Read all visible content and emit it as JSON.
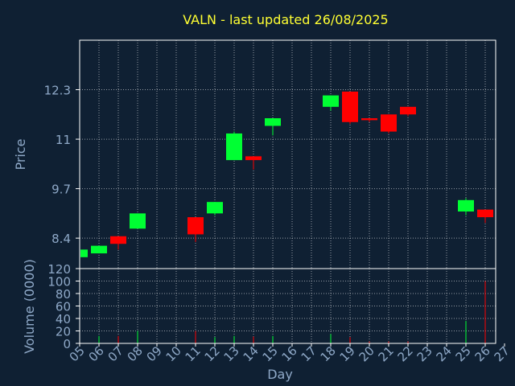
{
  "chart_data": {
    "type": "candlestick",
    "title": "VALN - last updated 26/08/2025",
    "xlabel": "Day",
    "price_panel": {
      "ylabel": "Price",
      "y_ticks": [
        "8.4",
        "9.7",
        "11",
        "12.3"
      ],
      "ylim": [
        7.6,
        13.6
      ]
    },
    "volume_panel": {
      "ylabel": "Volume (0000)",
      "y_ticks": [
        "0",
        "20",
        "40",
        "60",
        "80",
        "100",
        "120"
      ],
      "ylim": [
        0,
        120
      ]
    },
    "x_ticks": [
      "05",
      "06",
      "07",
      "08",
      "09",
      "10",
      "11",
      "12",
      "13",
      "14",
      "15",
      "16",
      "17",
      "18",
      "19",
      "20",
      "21",
      "22",
      "23",
      "24",
      "25",
      "26",
      "27"
    ],
    "grid": true,
    "colors": {
      "background": "#0f2033",
      "up": "#00ff33",
      "down": "#ff0000",
      "grid": "#ffffff",
      "axis": "#ffffff",
      "text": "#8fa9c8",
      "title": "#ffff33"
    },
    "candles": [
      {
        "day": 5,
        "open": 7.9,
        "high": 8.1,
        "low": 7.9,
        "close": 8.1,
        "volume": 1
      },
      {
        "day": 6,
        "open": 8.0,
        "high": 8.2,
        "low": 8.0,
        "close": 8.2,
        "volume": 12
      },
      {
        "day": 7,
        "open": 8.45,
        "high": 8.45,
        "low": 8.1,
        "close": 8.25,
        "volume": 12
      },
      {
        "day": 8,
        "open": 8.65,
        "high": 9.05,
        "low": 8.65,
        "close": 9.05,
        "volume": 20
      },
      {
        "day": 11,
        "open": 8.95,
        "high": 8.95,
        "low": 8.3,
        "close": 8.5,
        "volume": 20
      },
      {
        "day": 12,
        "open": 9.05,
        "high": 9.35,
        "low": 9.0,
        "close": 9.35,
        "volume": 10
      },
      {
        "day": 13,
        "open": 10.45,
        "high": 11.2,
        "low": 10.45,
        "close": 11.15,
        "volume": 12
      },
      {
        "day": 14,
        "open": 10.55,
        "high": 10.55,
        "low": 10.2,
        "close": 10.45,
        "volume": 11
      },
      {
        "day": 15,
        "open": 11.35,
        "high": 11.55,
        "low": 11.1,
        "close": 11.55,
        "volume": 12
      },
      {
        "day": 18,
        "open": 11.85,
        "high": 12.15,
        "low": 11.75,
        "close": 12.15,
        "volume": 15
      },
      {
        "day": 19,
        "open": 12.25,
        "high": 12.25,
        "low": 11.4,
        "close": 11.45,
        "volume": 10
      },
      {
        "day": 20,
        "open": 11.55,
        "high": 11.55,
        "low": 11.45,
        "close": 11.5,
        "volume": 3
      },
      {
        "day": 21,
        "open": 11.65,
        "high": 11.65,
        "low": 11.15,
        "close": 11.2,
        "volume": 3
      },
      {
        "day": 22,
        "open": 11.85,
        "high": 11.85,
        "low": 11.6,
        "close": 11.65,
        "volume": 3
      },
      {
        "day": 25,
        "open": 9.1,
        "high": 9.45,
        "low": 9.0,
        "close": 9.4,
        "volume": 36
      },
      {
        "day": 26,
        "open": 9.15,
        "high": 9.15,
        "low": 8.8,
        "close": 8.95,
        "volume": 100
      }
    ]
  }
}
